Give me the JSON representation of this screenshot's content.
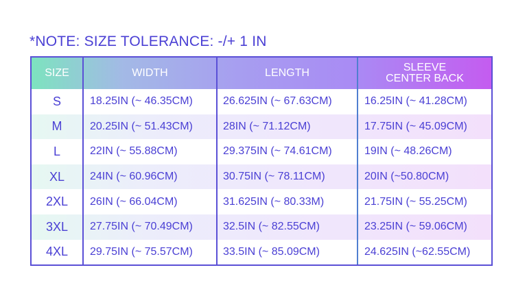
{
  "note": "*NOTE: SIZE TOLERANCE: -/+ 1 IN",
  "colors": {
    "text": "#4a3fd4",
    "border": "#5a4fd6",
    "header_gradient": [
      "#7de3bf",
      "#a3b9e6",
      "#a79ef0",
      "#a98bf4",
      "#c45cf0"
    ],
    "row_tint": [
      "#e6f8f2",
      "#efe8fc",
      "#f3e0fb"
    ]
  },
  "table": {
    "headers": {
      "size": "SIZE",
      "width": "WIDTH",
      "length": "LENGTH",
      "sleeve_line1": "SLEEVE",
      "sleeve_line2": "CENTER BACK"
    },
    "rows": [
      {
        "size": "S",
        "width": "18.25IN (~ 46.35CM)",
        "length": "26.625IN (~ 67.63CM)",
        "sleeve": "16.25IN (~ 41.28CM)"
      },
      {
        "size": "M",
        "width": "20.25IN (~ 51.43CM)",
        "length": "28IN (~ 71.12CM)",
        "sleeve": "17.75IN (~ 45.09CM)"
      },
      {
        "size": "L",
        "width": "22IN (~ 55.88CM)",
        "length": "29.375IN (~ 74.61CM)",
        "sleeve": "19IN (~ 48.26CM)"
      },
      {
        "size": "XL",
        "width": "24IN (~ 60.96CM)",
        "length": "30.75IN (~ 78.11CM)",
        "sleeve": "20IN (~50.80CM)"
      },
      {
        "size": "2XL",
        "width": "26IN (~ 66.04CM)",
        "length": "31.625IN (~ 80.33M)",
        "sleeve": "21.75IN (~ 55.25CM)"
      },
      {
        "size": "3XL",
        "width": "27.75IN (~ 70.49CM)",
        "length": "32.5IN (~ 82.55CM)",
        "sleeve": "23.25IN (~ 59.06CM)"
      },
      {
        "size": "4XL",
        "width": "29.75IN (~ 75.57CM)",
        "length": "33.5IN (~ 85.09CM)",
        "sleeve": "24.625IN (~62.55CM)"
      }
    ]
  }
}
